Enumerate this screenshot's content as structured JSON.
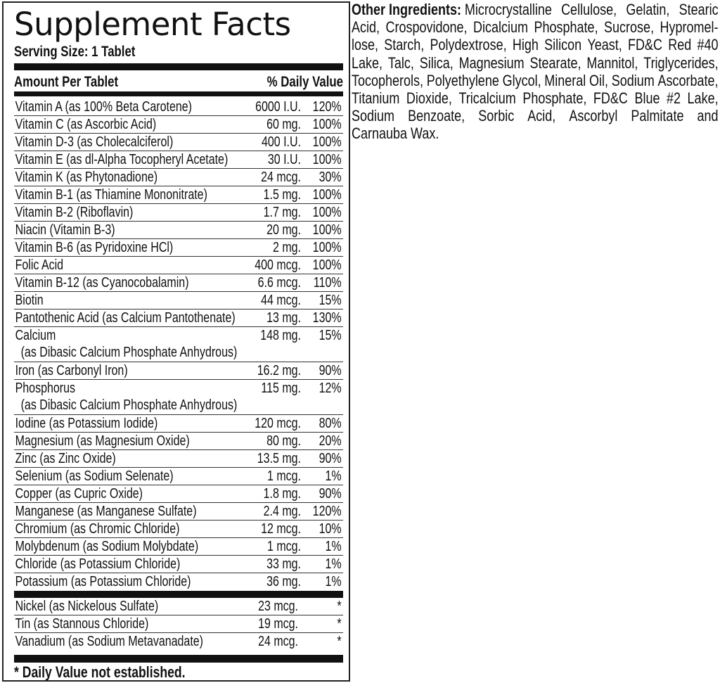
{
  "label": {
    "title": "Supplement Facts",
    "serving_size": "Serving Size: 1 Tablet",
    "header_left": "Amount Per Tablet",
    "header_right": "% Daily Value",
    "nutrients": [
      {
        "name": "Vitamin A (as 100% Beta Carotene)",
        "amount": "6000 I.U.",
        "dv": "120%"
      },
      {
        "name": "Vitamin C (as Ascorbic Acid)",
        "amount": "60 mg.",
        "dv": "100%"
      },
      {
        "name": "Vitamin D-3 (as Cholecalciferol)",
        "amount": "400 I.U.",
        "dv": "100%"
      },
      {
        "name": "Vitamin E (as dl-Alpha Tocopheryl Acetate)",
        "amount": "30 I.U.",
        "dv": "100%"
      },
      {
        "name": "Vitamin K (as Phytonadione)",
        "amount": "24 mcg.",
        "dv": "30%"
      },
      {
        "name": "Vitamin B-1 (as Thiamine Mononitrate)",
        "amount": "1.5 mg.",
        "dv": "100%"
      },
      {
        "name": "Vitamin B-2 (Riboflavin)",
        "amount": "1.7 mg.",
        "dv": "100%"
      },
      {
        "name": "Niacin (Vitamin B-3)",
        "amount": "20 mg.",
        "dv": "100%"
      },
      {
        "name": "Vitamin B-6 (as Pyridoxine HCl)",
        "amount": "2 mg.",
        "dv": "100%"
      },
      {
        "name": "Folic Acid",
        "amount": "400 mcg.",
        "dv": "100%"
      },
      {
        "name": "Vitamin B-12 (as Cyanocobalamin)",
        "amount": "6.6 mcg.",
        "dv": "110%"
      },
      {
        "name": "Biotin",
        "amount": "44 mcg.",
        "dv": "15%"
      },
      {
        "name": "Pantothenic Acid (as Calcium Pantothenate)",
        "amount": "13 mg.",
        "dv": "130%"
      },
      {
        "name": "Calcium",
        "sub": "(as Dibasic Calcium Phosphate Anhydrous)",
        "amount": "148 mg.",
        "dv": "15%"
      },
      {
        "name": "Iron (as Carbonyl Iron)",
        "amount": "16.2 mg.",
        "dv": "90%"
      },
      {
        "name": "Phosphorus",
        "sub": "(as Dibasic Calcium Phosphate Anhydrous)",
        "amount": "115 mg.",
        "dv": "12%"
      },
      {
        "name": "Iodine (as Potassium Iodide)",
        "amount": "120 mcg.",
        "dv": "80%"
      },
      {
        "name": "Magnesium (as Magnesium Oxide)",
        "amount": "80 mg.",
        "dv": "20%"
      },
      {
        "name": "Zinc (as Zinc Oxide)",
        "amount": "13.5 mg.",
        "dv": "90%"
      },
      {
        "name": "Selenium (as Sodium Selenate)",
        "amount": "1 mcg.",
        "dv": "1%"
      },
      {
        "name": "Copper (as Cupric Oxide)",
        "amount": "1.8 mg.",
        "dv": "90%"
      },
      {
        "name": "Manganese (as Manganese Sulfate)",
        "amount": "2.4 mg.",
        "dv": "120%"
      },
      {
        "name": "Chromium (as Chromic Chloride)",
        "amount": "12 mcg.",
        "dv": "10%"
      },
      {
        "name": "Molybdenum (as Sodium Molybdate)",
        "amount": "1 mcg.",
        "dv": "1%"
      },
      {
        "name": "Chloride (as Potassium Chloride)",
        "amount": "33 mg.",
        "dv": "1%"
      },
      {
        "name": "Potassium (as Potassium Chloride)",
        "amount": "36 mg.",
        "dv": "1%"
      }
    ],
    "no_dv_nutrients": [
      {
        "name": "Nickel (as Nickelous Sulfate)",
        "amount": "23 mcg.",
        "dv": "*"
      },
      {
        "name": "Tin (as Stannous Chloride)",
        "amount": "19 mcg.",
        "dv": "*"
      },
      {
        "name": "Vanadium (as Sodium Metavanadate)",
        "amount": "24 mcg.",
        "dv": "*"
      }
    ],
    "footnote": "* Daily Value not established."
  },
  "other_ingredients": {
    "label": "Other Ingredients:",
    "lines": [
      "Microcrystalline Cellulose, Gelatin, Stearic",
      "Acid, Crospovidone, Dicalcium Phosphate, Sucrose, Hypromel-",
      "lose, Starch, Polydextrose, High Silicon Yeast, FD&C Red #40",
      "Lake, Talc, Silica, Magnesium Stearate, Mannitol, Triglycerides,",
      "Tocopherols, Polyethylene Glycol, Mineral Oil, Sodium Ascorbate,",
      "Titanium Dioxide, Tricalcium Phosphate, FD&C Blue #2 Lake,",
      "Sodium Benzoate, Sorbic Acid, Ascorbyl Palmitate and",
      "Carnauba Wax."
    ]
  }
}
